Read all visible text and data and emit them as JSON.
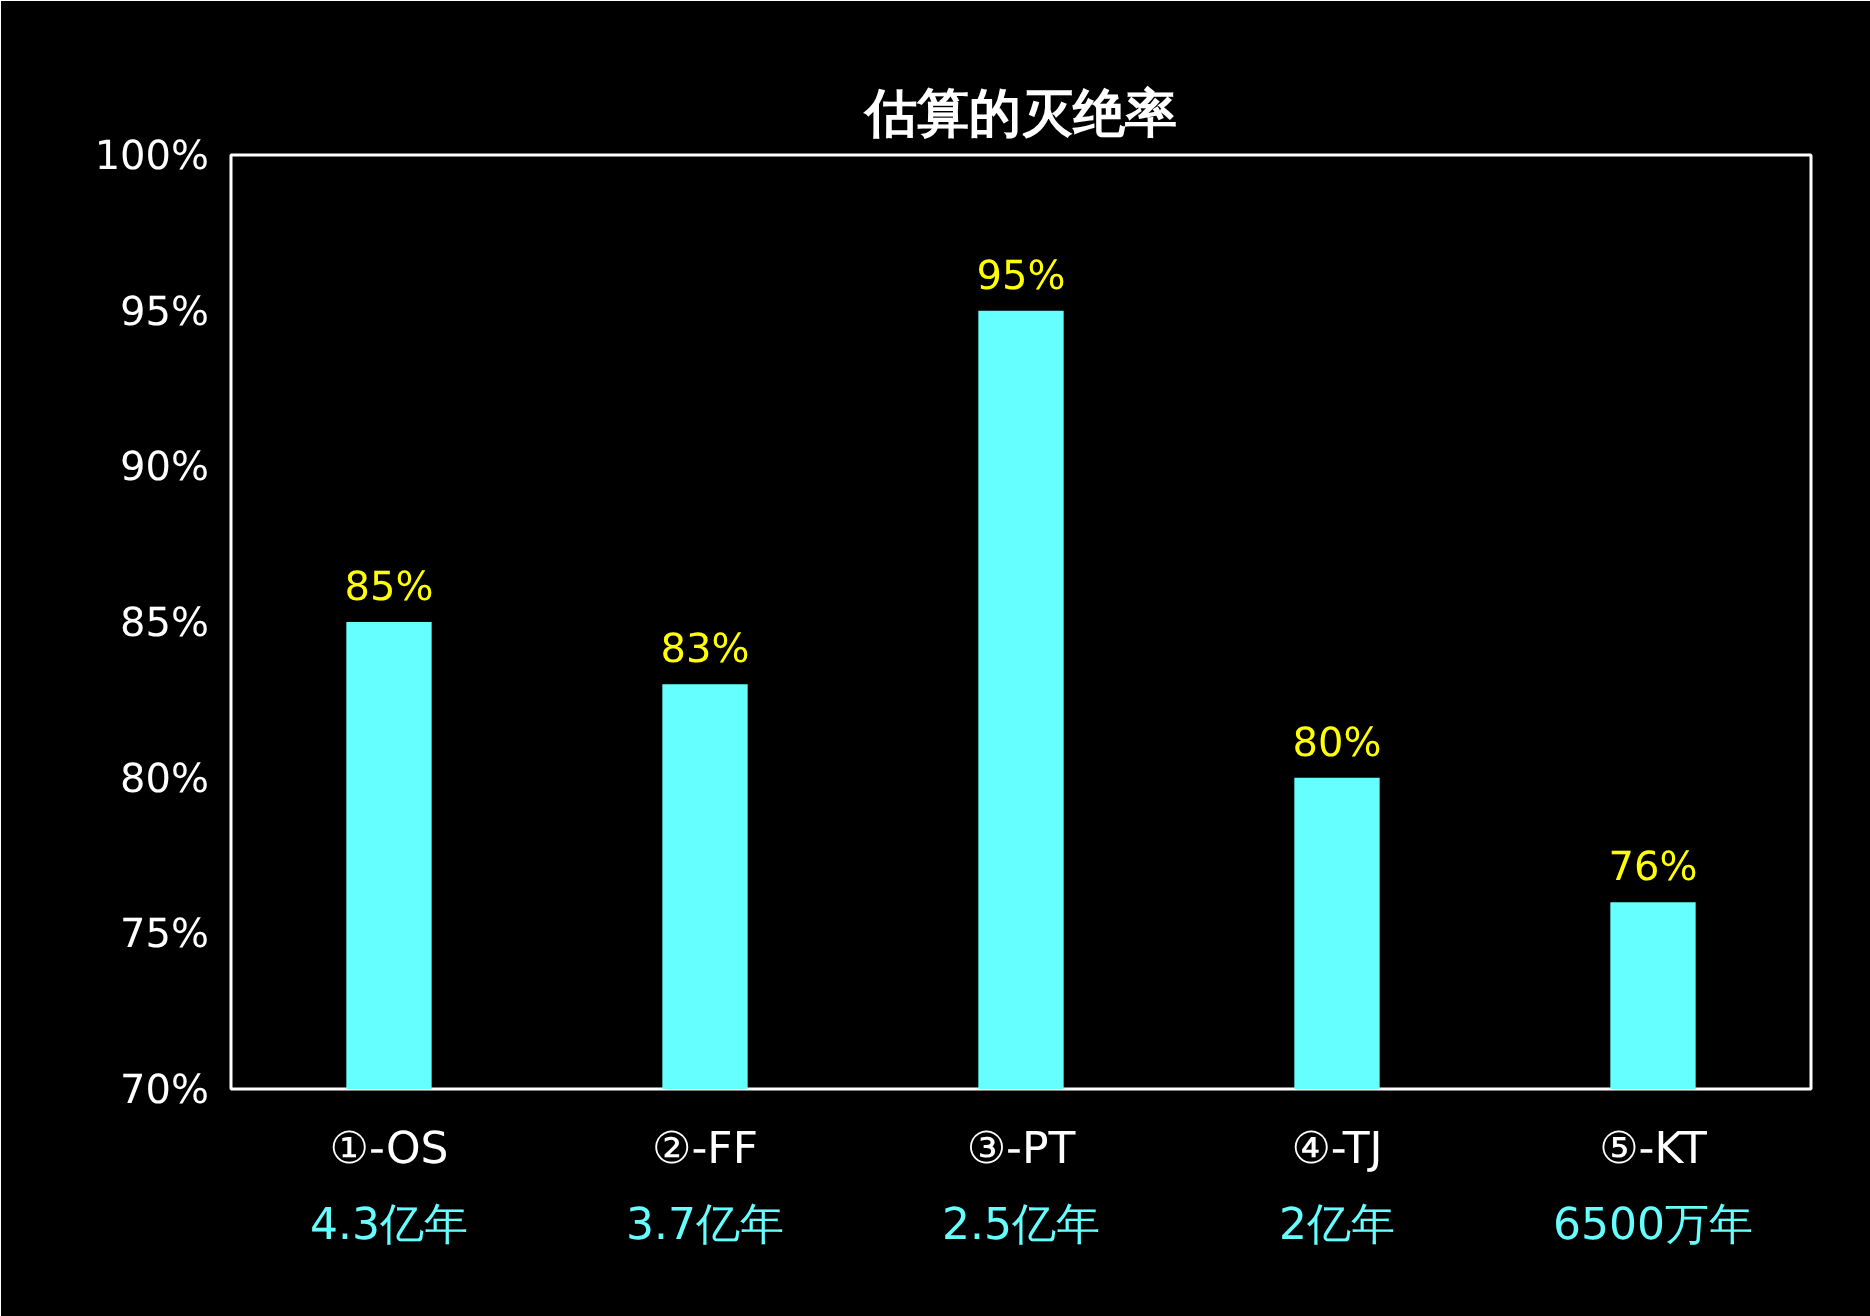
{
  "chart_data": {
    "type": "bar",
    "title": "估算的灭绝率",
    "categories": [
      "①-OS\n4.3亿年",
      "②-FF\n3.7亿年",
      "③-PT\n2.5亿年",
      "④-TJ\n2亿年",
      "⑤-KT\n6500万年"
    ],
    "values": [
      85,
      83,
      95,
      80,
      76
    ],
    "color": "#66ffff",
    "value_labels": [
      "85%",
      "83%",
      "95%",
      "80%",
      "76%"
    ],
    "ylim": [
      70,
      100
    ],
    "yticks": [
      {
        "value": 70,
        "label": "70%"
      },
      {
        "value": 75,
        "label": "75%"
      },
      {
        "value": 80,
        "label": "80%"
      },
      {
        "value": 85,
        "label": "85%"
      },
      {
        "value": 90,
        "label": "90%"
      },
      {
        "value": 95,
        "label": "95%"
      },
      {
        "value": 100,
        "label": "100%"
      }
    ],
    "grid": false
  }
}
